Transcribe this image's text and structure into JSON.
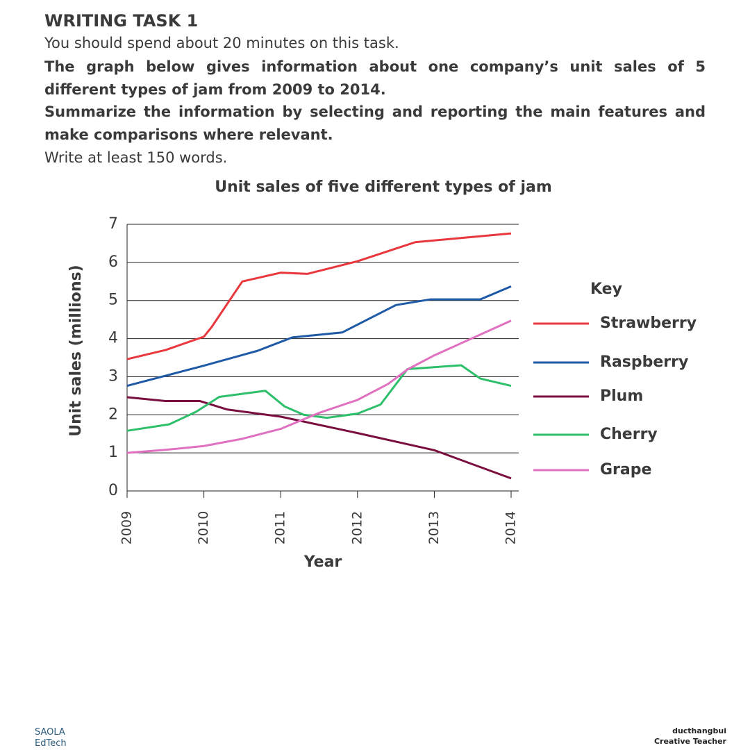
{
  "header": {
    "title": "WRITING TASK 1",
    "instruction": "You should spend about 20 minutes on this task.",
    "prompt": "The graph below gives information about one company’s unit sales of 5 different types of jam from 2009 to 2014.",
    "task": "Summarize the information by selecting and reporting the main features and make comparisons where relevant.",
    "word_limit": "Write at least 150 words."
  },
  "chart_data": {
    "type": "line",
    "title": "Unit sales of five different types of jam",
    "x_label": "Year",
    "y_label": "Unit sales (millions)",
    "legend_title": "Key",
    "xlim": [
      2009,
      2014
    ],
    "xticks": [
      2009,
      2010,
      2011,
      2012,
      2013,
      2014
    ],
    "ylim": [
      0,
      7
    ],
    "yticks": [
      0,
      1,
      2,
      3,
      4,
      5,
      6,
      7
    ],
    "grid": true,
    "series": [
      {
        "name": "Strawberry",
        "color": "#e8383d",
        "x": [
          2009,
          2009.5,
          2010,
          2010.1,
          2010.5,
          2011,
          2011.35,
          2012,
          2012.75,
          2014
        ],
        "values": [
          3.46,
          3.7,
          4.05,
          4.3,
          5.5,
          5.73,
          5.7,
          6.03,
          6.53,
          6.76
        ]
      },
      {
        "name": "Raspberry",
        "color": "#1f5aa6",
        "x": [
          2009,
          2010,
          2010.7,
          2011.15,
          2011.8,
          2012.5,
          2012.95,
          2013.6,
          2014
        ],
        "values": [
          2.76,
          3.29,
          3.68,
          4.03,
          4.16,
          4.88,
          5.03,
          5.03,
          5.37
        ]
      },
      {
        "name": "Plum",
        "color": "#7a0f3f",
        "x": [
          2009,
          2009.5,
          2009.95,
          2010.3,
          2011,
          2012,
          2013,
          2014
        ],
        "values": [
          2.46,
          2.36,
          2.36,
          2.14,
          1.95,
          1.52,
          1.07,
          0.33
        ]
      },
      {
        "name": "Cherry",
        "color": "#2dbf6a",
        "x": [
          2009,
          2009.55,
          2009.9,
          2010.2,
          2010.8,
          2011.05,
          2011.3,
          2011.6,
          2012,
          2012.3,
          2012.65,
          2013.35,
          2013.6,
          2014
        ],
        "values": [
          1.58,
          1.75,
          2.08,
          2.47,
          2.63,
          2.22,
          2.0,
          1.92,
          2.03,
          2.27,
          3.2,
          3.3,
          2.95,
          2.76
        ]
      },
      {
        "name": "Grape",
        "color": "#e070c0",
        "x": [
          2009,
          2009.5,
          2010,
          2010.5,
          2011,
          2011.5,
          2012,
          2012.4,
          2012.65,
          2013,
          2014
        ],
        "values": [
          1.0,
          1.08,
          1.18,
          1.37,
          1.63,
          2.05,
          2.39,
          2.81,
          3.19,
          3.56,
          4.47
        ]
      }
    ]
  },
  "footer": {
    "left_brand": "SAOLA",
    "left_sub": "EdTech",
    "right_brand": "ducthangbui",
    "right_sub": "Creative Teacher"
  }
}
